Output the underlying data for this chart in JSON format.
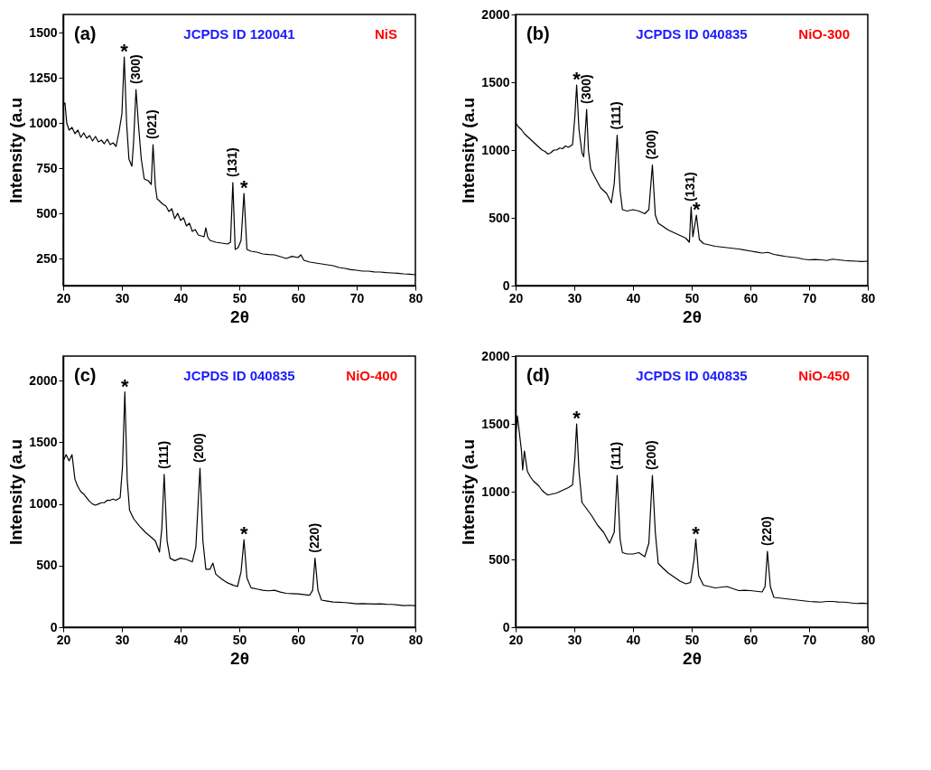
{
  "chart_data": [
    {
      "type": "line",
      "xlabel": "2θ",
      "ylabel": "Intensity (a.u",
      "xlim": [
        20,
        80
      ],
      "ylim": [
        100,
        1600
      ],
      "xticks": [
        20,
        30,
        40,
        50,
        60,
        70,
        80
      ],
      "yticks": [
        250,
        500,
        750,
        1000,
        1250,
        1500
      ],
      "series": [
        {
          "color": "#000000",
          "x": [
            20,
            20.3,
            20.6,
            21,
            21.5,
            22,
            22.5,
            23,
            23.5,
            24,
            24.5,
            25,
            25.5,
            26,
            26.5,
            27,
            27.5,
            28,
            28.5,
            29,
            29.5,
            30,
            30.4,
            30.8,
            31.2,
            31.7,
            32,
            32.4,
            32.8,
            33.3,
            33.8,
            34.5,
            35,
            35.3,
            35.7,
            36,
            36.5,
            37,
            37.5,
            38,
            38.5,
            39,
            39.5,
            40,
            40.5,
            41,
            41.5,
            42,
            42.5,
            43,
            43.5,
            44,
            44.3,
            44.6,
            45,
            46,
            47,
            48,
            48.5,
            48.9,
            49.3,
            49.8,
            50.3,
            50.8,
            51.3,
            52,
            53,
            54,
            55,
            56,
            57,
            58,
            59,
            60,
            60.5,
            61,
            62,
            63,
            64,
            65,
            66,
            67,
            68,
            69,
            70,
            71,
            72,
            73,
            74,
            75,
            76,
            77,
            78,
            79,
            80
          ],
          "values": [
            1100,
            1110,
            1000,
            960,
            975,
            940,
            960,
            920,
            945,
            915,
            930,
            900,
            925,
            895,
            905,
            885,
            910,
            880,
            890,
            870,
            950,
            1050,
            1365,
            1000,
            800,
            760,
            900,
            1185,
            1000,
            800,
            690,
            680,
            660,
            880,
            650,
            580,
            565,
            550,
            540,
            510,
            525,
            470,
            500,
            460,
            475,
            430,
            445,
            400,
            410,
            380,
            375,
            370,
            420,
            370,
            350,
            340,
            335,
            330,
            340,
            670,
            300,
            310,
            350,
            610,
            300,
            290,
            285,
            275,
            272,
            270,
            260,
            250,
            262,
            255,
            270,
            240,
            230,
            225,
            220,
            215,
            210,
            200,
            195,
            188,
            185,
            180,
            180,
            176,
            175,
            172,
            170,
            168,
            165,
            163,
            160
          ]
        }
      ],
      "annotations": [
        "(a)",
        "JCPDS ID 120041",
        "NiS",
        {
          "text": "*",
          "x": 30.4,
          "y": 1365
        },
        {
          "text": "(300)",
          "x": 32.4,
          "y": 1185
        },
        {
          "text": "(021)",
          "x": 35.3,
          "y": 880
        },
        {
          "text": "(131)",
          "x": 48.9,
          "y": 670
        },
        {
          "text": "*",
          "x": 50.8,
          "y": 610
        }
      ]
    },
    {
      "type": "line",
      "xlabel": "2θ",
      "ylabel": "Intensity (a.u",
      "xlim": [
        20,
        80
      ],
      "ylim": [
        0,
        2000
      ],
      "xticks": [
        20,
        30,
        40,
        50,
        60,
        70,
        80
      ],
      "yticks": [
        0,
        500,
        1000,
        1500,
        2000
      ],
      "series": [
        {
          "color": "#000000",
          "x": [
            20,
            20.5,
            21,
            21.5,
            22,
            22.5,
            23,
            23.5,
            24,
            24.5,
            25,
            25.5,
            26,
            26.5,
            27,
            27.5,
            28,
            28.5,
            29,
            29.7,
            30.1,
            30.4,
            30.8,
            31.3,
            31.6,
            32.1,
            32.4,
            32.8,
            33.5,
            34,
            34.5,
            35,
            35.5,
            36.3,
            36.8,
            37.3,
            37.8,
            38.2,
            39,
            40,
            41,
            42,
            42.7,
            43.3,
            43.8,
            44.3,
            45,
            46,
            47,
            48,
            49,
            49.6,
            49.9,
            50.2,
            50.8,
            51.3,
            52,
            53,
            54,
            55,
            56,
            57,
            58,
            59,
            60,
            61,
            62,
            63,
            64,
            65,
            66,
            67,
            68,
            69,
            70,
            71,
            72,
            73,
            74,
            75,
            76,
            77,
            78,
            79,
            80
          ],
          "values": [
            1200,
            1170,
            1150,
            1120,
            1100,
            1080,
            1060,
            1040,
            1020,
            1000,
            990,
            970,
            980,
            1000,
            1000,
            1015,
            1010,
            1030,
            1020,
            1040,
            1250,
            1480,
            1150,
            980,
            950,
            1300,
            1000,
            860,
            800,
            760,
            720,
            700,
            680,
            610,
            750,
            1110,
            700,
            560,
            550,
            560,
            550,
            530,
            560,
            890,
            520,
            460,
            440,
            410,
            390,
            370,
            350,
            320,
            580,
            360,
            520,
            340,
            310,
            300,
            290,
            285,
            280,
            275,
            270,
            262,
            255,
            248,
            240,
            245,
            230,
            222,
            215,
            210,
            205,
            195,
            190,
            192,
            190,
            185,
            195,
            190,
            185,
            182,
            180,
            178,
            180
          ]
        }
      ],
      "annotations": [
        "(b)",
        "JCPDS ID 040835",
        "NiO-300",
        {
          "text": "*",
          "x": 30.4,
          "y": 1480
        },
        {
          "text": "(300)",
          "x": 32.1,
          "y": 1300
        },
        {
          "text": "(111)",
          "x": 37.3,
          "y": 1110
        },
        {
          "text": "(200)",
          "x": 43.3,
          "y": 890
        },
        {
          "text": "(131)",
          "x": 49.9,
          "y": 580
        },
        {
          "text": "*",
          "x": 50.8,
          "y": 520
        }
      ]
    },
    {
      "type": "line",
      "xlabel": "2θ",
      "ylabel": "Intensity (a.u",
      "xlim": [
        20,
        80
      ],
      "ylim": [
        0,
        2200
      ],
      "xticks": [
        20,
        30,
        40,
        50,
        60,
        70,
        80
      ],
      "yticks": [
        0,
        500,
        1000,
        1500,
        2000
      ],
      "series": [
        {
          "color": "#000000",
          "x": [
            20,
            20.5,
            21,
            21.5,
            22,
            22.5,
            23,
            23.5,
            24,
            24.5,
            25,
            25.5,
            26,
            26.5,
            27,
            27.5,
            28,
            28.5,
            29,
            29.7,
            30.1,
            30.5,
            30.9,
            31.3,
            32,
            33,
            34,
            35,
            35.7,
            36.4,
            36.8,
            37.2,
            37.7,
            38.2,
            39,
            40,
            41,
            42,
            42.6,
            43.3,
            43.8,
            44.3,
            45,
            45.5,
            46,
            47,
            48,
            49,
            49.7,
            50.3,
            50.8,
            51.3,
            52,
            53,
            54,
            55,
            56,
            57,
            58,
            59,
            60,
            61,
            62,
            62.5,
            62.9,
            63.4,
            64,
            65,
            66,
            67,
            68,
            69,
            70,
            71,
            72,
            73,
            74,
            75,
            76,
            77,
            78,
            79,
            80
          ],
          "values": [
            1350,
            1400,
            1350,
            1400,
            1200,
            1140,
            1100,
            1080,
            1050,
            1020,
            1000,
            990,
            1000,
            1010,
            1010,
            1030,
            1030,
            1040,
            1030,
            1050,
            1300,
            1910,
            1200,
            950,
            880,
            820,
            770,
            730,
            700,
            610,
            800,
            1240,
            700,
            560,
            540,
            560,
            550,
            530,
            650,
            1290,
            700,
            470,
            470,
            520,
            430,
            390,
            360,
            340,
            330,
            450,
            710,
            400,
            320,
            310,
            300,
            295,
            300,
            285,
            275,
            272,
            270,
            265,
            260,
            300,
            560,
            300,
            220,
            212,
            205,
            202,
            200,
            195,
            190,
            192,
            190,
            188,
            190,
            186,
            185,
            180,
            175,
            178,
            175
          ]
        }
      ],
      "annotations": [
        "(c)",
        "JCPDS ID 040835",
        "NiO-400",
        {
          "text": "*",
          "x": 30.5,
          "y": 1910
        },
        {
          "text": "(111)",
          "x": 37.2,
          "y": 1240
        },
        {
          "text": "(200)",
          "x": 43.3,
          "y": 1290
        },
        {
          "text": "*",
          "x": 50.8,
          "y": 710
        },
        {
          "text": "(220)",
          "x": 62.9,
          "y": 560
        }
      ]
    },
    {
      "type": "line",
      "xlabel": "2θ",
      "ylabel": "Intensity (a.u",
      "xlim": [
        20,
        80
      ],
      "ylim": [
        0,
        2000
      ],
      "xticks": [
        20,
        30,
        40,
        50,
        60,
        70,
        80
      ],
      "yticks": [
        0,
        500,
        1000,
        1500,
        2000
      ],
      "series": [
        {
          "color": "#000000",
          "x": [
            20,
            20.3,
            20.6,
            21,
            21.2,
            21.5,
            22,
            22.5,
            23,
            23.5,
            24,
            24.5,
            25,
            25.5,
            26,
            26.5,
            27,
            27.5,
            28,
            28.5,
            29,
            29.7,
            30.1,
            30.4,
            30.8,
            31.3,
            32,
            33,
            34,
            35,
            36,
            36.8,
            37.3,
            37.8,
            38.2,
            39,
            40,
            41,
            42,
            42.7,
            43.3,
            43.8,
            44.3,
            45,
            46,
            47,
            48,
            49,
            49.8,
            50.4,
            50.7,
            51.2,
            52,
            53,
            54,
            55,
            56,
            57,
            58,
            59,
            60,
            61,
            62,
            62.5,
            62.9,
            63.4,
            64,
            65,
            66,
            67,
            68,
            69,
            70,
            71,
            72,
            73,
            74,
            75,
            76,
            77,
            78,
            79,
            80
          ],
          "values": [
            1400,
            1560,
            1450,
            1300,
            1160,
            1300,
            1150,
            1110,
            1080,
            1060,
            1040,
            1010,
            990,
            975,
            980,
            985,
            990,
            1000,
            1010,
            1020,
            1030,
            1050,
            1250,
            1500,
            1150,
            920,
            880,
            820,
            750,
            700,
            620,
            700,
            1120,
            650,
            550,
            540,
            540,
            550,
            520,
            620,
            1120,
            700,
            470,
            440,
            400,
            370,
            340,
            320,
            330,
            500,
            650,
            380,
            310,
            300,
            290,
            295,
            300,
            285,
            270,
            272,
            270,
            265,
            260,
            300,
            560,
            300,
            220,
            215,
            210,
            205,
            200,
            195,
            190,
            188,
            185,
            190,
            190,
            186,
            185,
            180,
            175,
            178,
            175
          ]
        }
      ],
      "annotations": [
        "(d)",
        "JCPDS ID 040835",
        "NiO-450",
        {
          "text": "*",
          "x": 30.4,
          "y": 1500
        },
        {
          "text": "(111)",
          "x": 37.3,
          "y": 1120
        },
        {
          "text": "(200)",
          "x": 43.3,
          "y": 1120
        },
        {
          "text": "*",
          "x": 50.7,
          "y": 650
        },
        {
          "text": "(220)",
          "x": 62.9,
          "y": 560
        }
      ]
    }
  ]
}
